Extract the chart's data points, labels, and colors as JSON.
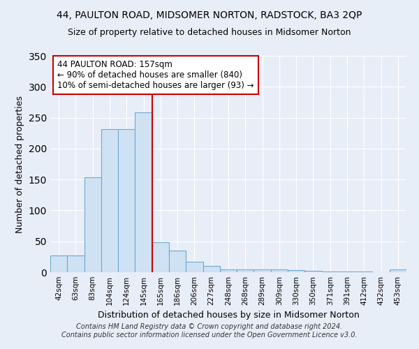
{
  "title": "44, PAULTON ROAD, MIDSOMER NORTON, RADSTOCK, BA3 2QP",
  "subtitle": "Size of property relative to detached houses in Midsomer Norton",
  "xlabel": "Distribution of detached houses by size in Midsomer Norton",
  "ylabel": "Number of detached properties",
  "footnote1": "Contains HM Land Registry data © Crown copyright and database right 2024.",
  "footnote2": "Contains public sector information licensed under the Open Government Licence v3.0.",
  "bar_labels": [
    "42sqm",
    "63sqm",
    "83sqm",
    "104sqm",
    "124sqm",
    "145sqm",
    "165sqm",
    "186sqm",
    "206sqm",
    "227sqm",
    "248sqm",
    "268sqm",
    "289sqm",
    "309sqm",
    "330sqm",
    "350sqm",
    "371sqm",
    "391sqm",
    "412sqm",
    "432sqm",
    "453sqm"
  ],
  "bar_values": [
    27,
    27,
    153,
    232,
    232,
    258,
    48,
    35,
    17,
    10,
    5,
    5,
    4,
    4,
    3,
    2,
    1,
    1,
    1,
    0,
    4
  ],
  "bar_color": "#cfe2f3",
  "bar_edge_color": "#6fa8d0",
  "red_line_index": 6,
  "red_line_color": "#cc0000",
  "annotation_line1": "44 PAULTON ROAD: 157sqm",
  "annotation_line2": "← 90% of detached houses are smaller (840)",
  "annotation_line3": "10% of semi-detached houses are larger (93) →",
  "annotation_box_color": "#ffffff",
  "annotation_box_edge_color": "#cc0000",
  "ylim": [
    0,
    350
  ],
  "yticks": [
    0,
    50,
    100,
    150,
    200,
    250,
    300,
    350
  ],
  "background_color": "#e8eef8",
  "grid_color": "#ffffff",
  "title_fontsize": 10,
  "subtitle_fontsize": 9,
  "ylabel_fontsize": 9,
  "xlabel_fontsize": 9,
  "tick_fontsize": 7.5,
  "footnote_fontsize": 7
}
